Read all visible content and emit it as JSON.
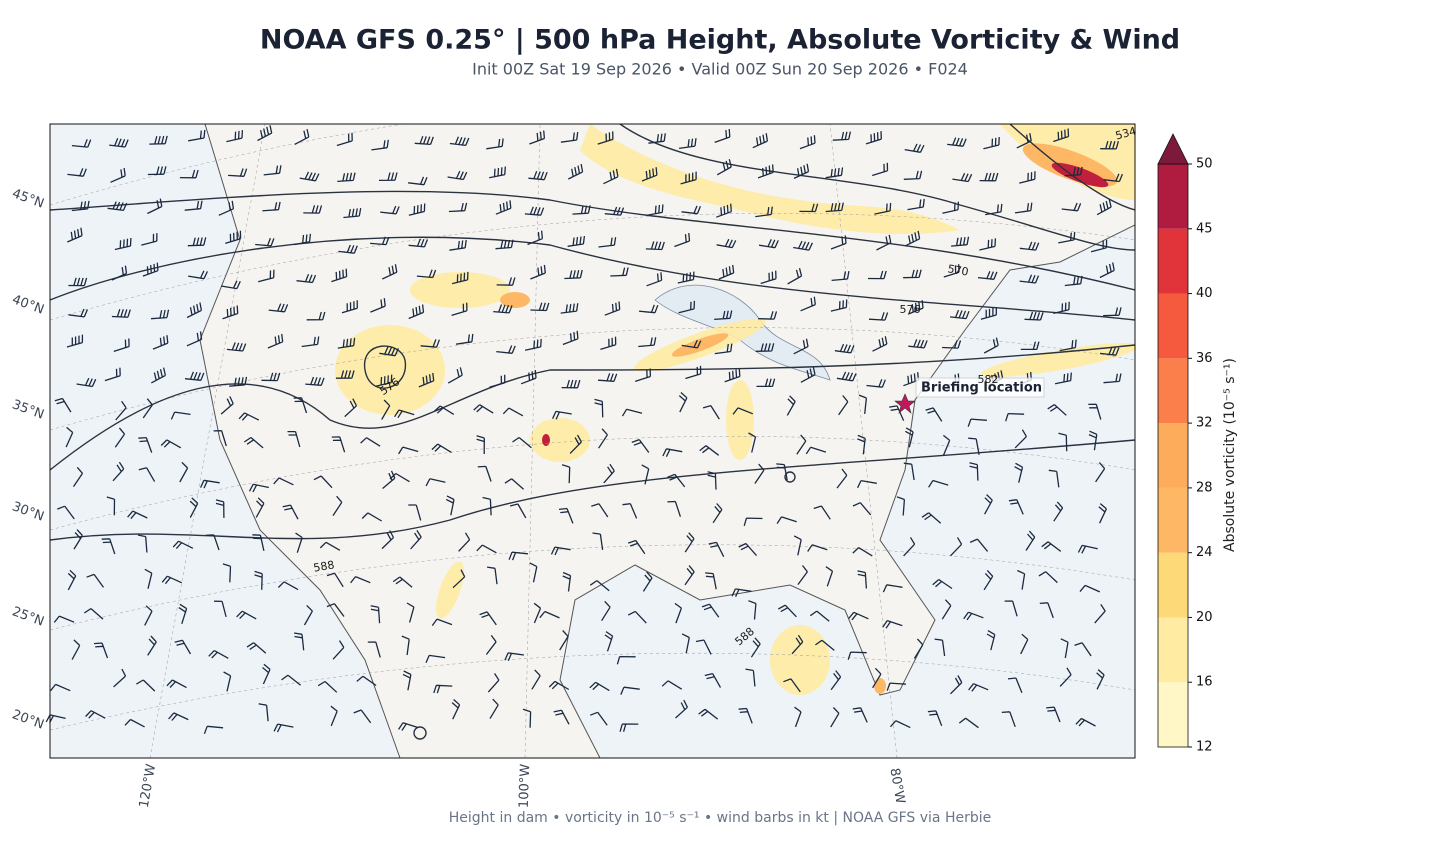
{
  "header": {
    "title": "NOAA GFS 0.25°  |  500 hPa Height, Absolute Vorticity & Wind",
    "subtitle": "Init 00Z Sat 19 Sep 2026  •  Valid 00Z Sun 20 Sep 2026  •  F024"
  },
  "map": {
    "lat_labels": [
      "45°N",
      "40°N",
      "35°N",
      "30°N",
      "25°N",
      "20°N"
    ],
    "lon_labels": [
      "120°W",
      "100°W",
      "80°W"
    ],
    "contour_labels": [
      "534",
      "570",
      "576",
      "576",
      "582",
      "588",
      "588"
    ],
    "marker_label": "Briefing location"
  },
  "colorbar": {
    "label": "Absolute vorticity (10⁻⁵ s⁻¹)",
    "ticks": [
      12,
      16,
      20,
      24,
      28,
      32,
      36,
      40,
      45,
      50
    ],
    "colors": [
      "#fff8c6",
      "#ffeba2",
      "#fed977",
      "#feb865",
      "#fdac5c",
      "#fa7f4b",
      "#f5593e",
      "#e0343a",
      "#b01b40",
      "#7d1a3c"
    ],
    "extend": "max"
  },
  "footer": "Height in dam • vorticity in 10⁻⁵ s⁻¹ • wind barbs in kt  |  NOAA GFS via Herbie"
}
